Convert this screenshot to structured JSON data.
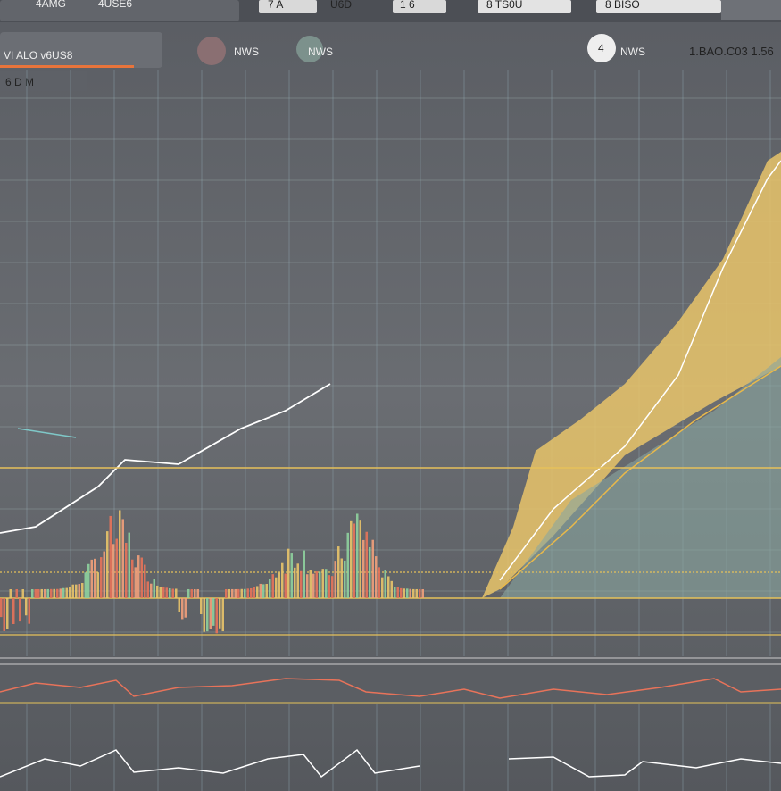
{
  "top_bar": {
    "items": [
      "4AMG",
      "4USE6",
      "7 A",
      "U6D",
      "1 6",
      "8 TS0U",
      "8 BISO"
    ]
  },
  "header": {
    "panel_title": "VI ALO v6US8",
    "tabs": [
      "NWS",
      "NWS",
      "NWS"
    ],
    "price": "1.BAO.C03 1.56",
    "badge": "4"
  },
  "toolbar": {
    "label": "6 D M"
  }
}
